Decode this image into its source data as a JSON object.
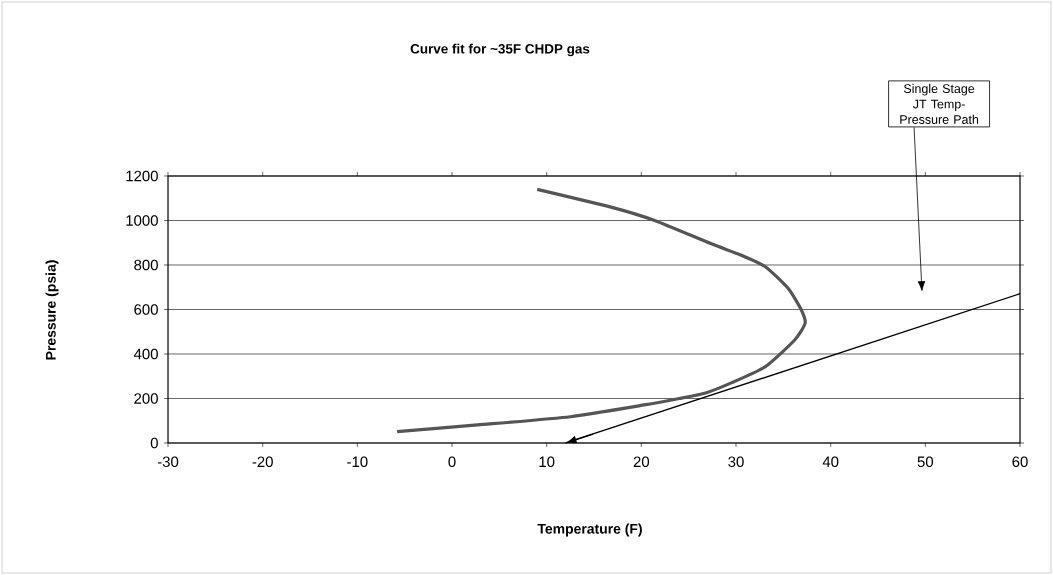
{
  "chart_data": {
    "type": "line",
    "title": "Curve fit for ~35F CHDP gas",
    "xlabel": "Temperature (F)",
    "ylabel": "Pressure (psia)",
    "xlim": [
      -30,
      60
    ],
    "xticks": [
      -30,
      -20,
      -10,
      0,
      10,
      20,
      30,
      40,
      50,
      60
    ],
    "ylim": [
      0,
      1200
    ],
    "yticks": [
      0,
      200,
      400,
      600,
      800,
      1000,
      1200
    ],
    "grid": "y",
    "series": [
      {
        "color": "#555555",
        "x": [
          -5.8,
          2.7,
          12.5,
          20.3,
          24,
          26.8,
          29.5,
          33.1,
          36.2,
          37.3,
          36.9,
          35.5,
          33.1,
          30.5,
          27.4,
          21.4,
          16.8,
          9.0
        ],
        "values": [
          51,
          81,
          118,
          171,
          200,
          225,
          270,
          343,
          463,
          538,
          598,
          695,
          792,
          845,
          895,
          1000,
          1060,
          1140
        ]
      },
      {
        "color": "#000000",
        "x": [
          12,
          60
        ],
        "values": [
          0,
          671
        ]
      }
    ],
    "annotations": [
      "Single Stage JT Temp-Pressure Path"
    ]
  }
}
